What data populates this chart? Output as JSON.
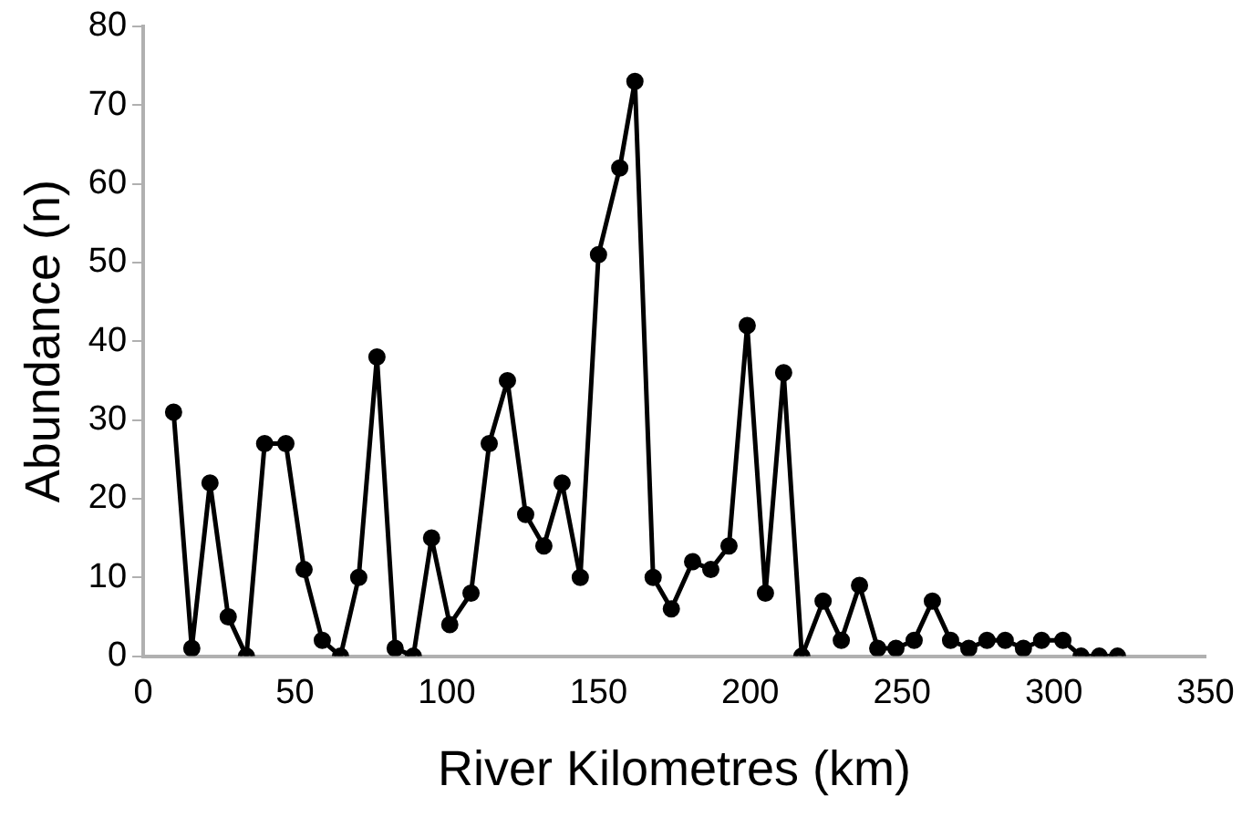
{
  "chart_data": {
    "type": "line",
    "xlabel": "River Kilometres (km)",
    "ylabel": "Abundance (n)",
    "series": [
      {
        "color": "#000000",
        "x": [
          10,
          16,
          22,
          28,
          34,
          40,
          47,
          53,
          59,
          65,
          71,
          77,
          83,
          89,
          95,
          101,
          108,
          114,
          120,
          126,
          132,
          138,
          144,
          150,
          157,
          162,
          168,
          174,
          181,
          187,
          193,
          199,
          205,
          211,
          217,
          224,
          230,
          236,
          242,
          248,
          254,
          260,
          266,
          272,
          278,
          284,
          290,
          296,
          303,
          309,
          315,
          321
        ],
        "values": [
          31,
          1,
          22,
          5,
          0,
          27,
          27,
          11,
          2,
          0,
          10,
          38,
          1,
          0,
          15,
          4,
          8,
          27,
          35,
          18,
          14,
          22,
          10,
          51,
          62,
          73,
          10,
          6,
          12,
          11,
          14,
          42,
          8,
          36,
          0,
          7,
          2,
          9,
          1,
          1,
          2,
          7,
          2,
          1,
          2,
          2,
          1,
          2,
          2,
          0,
          0,
          0
        ]
      }
    ],
    "xlim": [
      0,
      350
    ],
    "xticks": [
      0,
      50,
      100,
      150,
      200,
      250,
      300,
      350
    ],
    "ylim": [
      0,
      80
    ],
    "yticks": [
      0,
      10,
      20,
      30,
      40,
      50,
      60,
      70,
      80
    ],
    "grid": false,
    "legend": false,
    "marker": "circle",
    "line_style": "solid"
  }
}
